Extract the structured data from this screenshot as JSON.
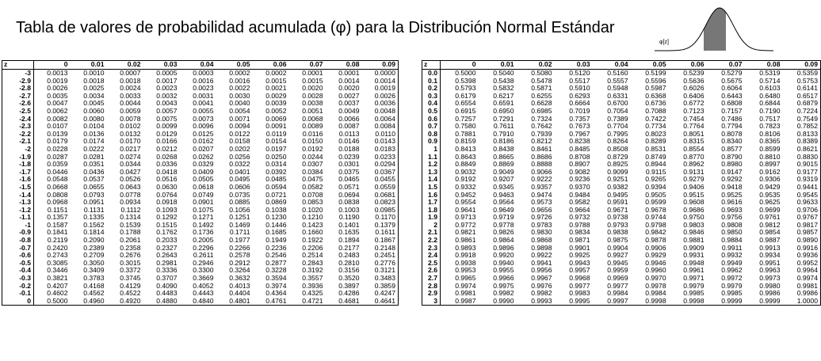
{
  "title": "Tabla de valores de probabilidad acumulada (φ) para la Distribución Normal Estándar",
  "curve_label": "φ[z]",
  "headers": [
    "z",
    "0",
    "0.01",
    "0.02",
    "0.03",
    "0.04",
    "0.05",
    "0.06",
    "0.07",
    "0.08",
    "0.09"
  ],
  "left_rows": [
    [
      "-3",
      "0.0013",
      "0.0010",
      "0.0007",
      "0.0005",
      "0.0003",
      "0.0002",
      "0.0002",
      "0.0001",
      "0.0001",
      "0.0000"
    ],
    [
      "-2.9",
      "0.0019",
      "0.0018",
      "0.0018",
      "0.0017",
      "0.0016",
      "0.0016",
      "0.0015",
      "0.0015",
      "0.0014",
      "0.0014"
    ],
    [
      "-2.8",
      "0.0026",
      "0.0025",
      "0.0024",
      "0.0023",
      "0.0023",
      "0.0022",
      "0.0021",
      "0.0020",
      "0.0020",
      "0.0019"
    ],
    [
      "-2.7",
      "0.0035",
      "0.0034",
      "0.0033",
      "0.0032",
      "0.0031",
      "0.0030",
      "0.0029",
      "0.0028",
      "0.0027",
      "0.0026"
    ],
    [
      "-2.6",
      "0.0047",
      "0.0045",
      "0.0044",
      "0.0043",
      "0.0041",
      "0.0040",
      "0.0039",
      "0.0038",
      "0.0037",
      "0.0036"
    ],
    [
      "-2.5",
      "0.0062",
      "0.0060",
      "0.0059",
      "0.0057",
      "0.0055",
      "0.0054",
      "0.0052",
      "0.0051",
      "0.0049",
      "0.0048"
    ],
    [
      "-2.4",
      "0.0082",
      "0.0080",
      "0.0078",
      "0.0075",
      "0.0073",
      "0.0071",
      "0.0069",
      "0.0068",
      "0.0066",
      "0.0064"
    ],
    [
      "-2.3",
      "0.0107",
      "0.0104",
      "0.0102",
      "0.0099",
      "0.0096",
      "0.0094",
      "0.0091",
      "0.0089",
      "0.0087",
      "0.0084"
    ],
    [
      "-2.2",
      "0.0139",
      "0.0136",
      "0.0132",
      "0.0129",
      "0.0125",
      "0.0122",
      "0.0119",
      "0.0116",
      "0.0113",
      "0.0110"
    ],
    [
      "-2.1",
      "0.0179",
      "0.0174",
      "0.0170",
      "0.0166",
      "0.0162",
      "0.0158",
      "0.0154",
      "0.0150",
      "0.0146",
      "0.0143"
    ],
    [
      "-2",
      "0.0228",
      "0.0222",
      "0.0217",
      "0.0212",
      "0.0207",
      "0.0202",
      "0.0197",
      "0.0192",
      "0.0188",
      "0.0183"
    ],
    [
      "-1.9",
      "0.0287",
      "0.0281",
      "0.0274",
      "0.0268",
      "0.0262",
      "0.0256",
      "0.0250",
      "0.0244",
      "0.0239",
      "0.0233"
    ],
    [
      "-1.8",
      "0.0359",
      "0.0351",
      "0.0344",
      "0.0336",
      "0.0329",
      "0.0322",
      "0.0314",
      "0.0307",
      "0.0301",
      "0.0294"
    ],
    [
      "-1.7",
      "0.0446",
      "0.0436",
      "0.0427",
      "0.0418",
      "0.0409",
      "0.0401",
      "0.0392",
      "0.0384",
      "0.0375",
      "0.0367"
    ],
    [
      "-1.6",
      "0.0548",
      "0.0537",
      "0.0526",
      "0.0516",
      "0.0505",
      "0.0495",
      "0.0485",
      "0.0475",
      "0.0465",
      "0.0455"
    ],
    [
      "-1.5",
      "0.0668",
      "0.0655",
      "0.0643",
      "0.0630",
      "0.0618",
      "0.0606",
      "0.0594",
      "0.0582",
      "0.0571",
      "0.0559"
    ],
    [
      "-1.4",
      "0.0808",
      "0.0793",
      "0.0778",
      "0.0764",
      "0.0749",
      "0.0735",
      "0.0721",
      "0.0708",
      "0.0694",
      "0.0681"
    ],
    [
      "-1.3",
      "0.0968",
      "0.0951",
      "0.0934",
      "0.0918",
      "0.0901",
      "0.0885",
      "0.0869",
      "0.0853",
      "0.0838",
      "0.0823"
    ],
    [
      "-1.2",
      "0.1151",
      "0.1131",
      "0.1112",
      "0.1093",
      "0.1075",
      "0.1056",
      "0.1038",
      "0.1020",
      "0.1003",
      "0.0985"
    ],
    [
      "-1.1",
      "0.1357",
      "0.1335",
      "0.1314",
      "0.1292",
      "0.1271",
      "0.1251",
      "0.1230",
      "0.1210",
      "0.1190",
      "0.1170"
    ],
    [
      "-1",
      "0.1587",
      "0.1562",
      "0.1539",
      "0.1515",
      "0.1492",
      "0.1469",
      "0.1446",
      "0.1423",
      "0.1401",
      "0.1379"
    ],
    [
      "-0.9",
      "0.1841",
      "0.1814",
      "0.1788",
      "0.1762",
      "0.1736",
      "0.1711",
      "0.1685",
      "0.1660",
      "0.1635",
      "0.1611"
    ],
    [
      "-0.8",
      "0.2119",
      "0.2090",
      "0.2061",
      "0.2033",
      "0.2005",
      "0.1977",
      "0.1949",
      "0.1922",
      "0.1894",
      "0.1867"
    ],
    [
      "-0.7",
      "0.2420",
      "0.2389",
      "0.2358",
      "0.2327",
      "0.2296",
      "0.2266",
      "0.2236",
      "0.2206",
      "0.2177",
      "0.2148"
    ],
    [
      "-0.6",
      "0.2743",
      "0.2709",
      "0.2676",
      "0.2643",
      "0.2611",
      "0.2578",
      "0.2546",
      "0.2514",
      "0.2483",
      "0.2451"
    ],
    [
      "-0.5",
      "0.3085",
      "0.3050",
      "0.3015",
      "0.2981",
      "0.2946",
      "0.2912",
      "0.2877",
      "0.2843",
      "0.2810",
      "0.2776"
    ],
    [
      "-0.4",
      "0.3446",
      "0.3409",
      "0.3372",
      "0.3336",
      "0.3300",
      "0.3264",
      "0.3228",
      "0.3192",
      "0.3156",
      "0.3121"
    ],
    [
      "-0.3",
      "0.3821",
      "0.3783",
      "0.3745",
      "0.3707",
      "0.3669",
      "0.3632",
      "0.3594",
      "0.3557",
      "0.3520",
      "0.3483"
    ],
    [
      "-0.2",
      "0.4207",
      "0.4168",
      "0.4129",
      "0.4090",
      "0.4052",
      "0.4013",
      "0.3974",
      "0.3936",
      "0.3897",
      "0.3859"
    ],
    [
      "-0.1",
      "0.4602",
      "0.4562",
      "0.4522",
      "0.4483",
      "0.4443",
      "0.4404",
      "0.4364",
      "0.4325",
      "0.4286",
      "0.4247"
    ],
    [
      "0",
      "0.5000",
      "0.4960",
      "0.4920",
      "0.4880",
      "0.4840",
      "0.4801",
      "0.4761",
      "0.4721",
      "0.4681",
      "0.4641"
    ]
  ],
  "right_rows": [
    [
      "0.0",
      "0.5000",
      "0.5040",
      "0.5080",
      "0.5120",
      "0.5160",
      "0.5199",
      "0.5239",
      "0.5279",
      "0.5319",
      "0.5359"
    ],
    [
      "0.1",
      "0.5398",
      "0.5438",
      "0.5478",
      "0.5517",
      "0.5557",
      "0.5596",
      "0.5636",
      "0.5675",
      "0.5714",
      "0.5753"
    ],
    [
      "0.2",
      "0.5793",
      "0.5832",
      "0.5871",
      "0.5910",
      "0.5948",
      "0.5987",
      "0.6026",
      "0.6064",
      "0.6103",
      "0.6141"
    ],
    [
      "0.3",
      "0.6179",
      "0.6217",
      "0.6255",
      "0.6293",
      "0.6331",
      "0.6368",
      "0.6406",
      "0.6443",
      "0.6480",
      "0.6517"
    ],
    [
      "0.4",
      "0.6554",
      "0.6591",
      "0.6628",
      "0.6664",
      "0.6700",
      "0.6736",
      "0.6772",
      "0.6808",
      "0.6844",
      "0.6879"
    ],
    [
      "0.5",
      "0.6915",
      "0.6950",
      "0.6985",
      "0.7019",
      "0.7054",
      "0.7088",
      "0.7123",
      "0.7157",
      "0.7190",
      "0.7224"
    ],
    [
      "0.6",
      "0.7257",
      "0.7291",
      "0.7324",
      "0.7357",
      "0.7389",
      "0.7422",
      "0.7454",
      "0.7486",
      "0.7517",
      "0.7549"
    ],
    [
      "0.7",
      "0.7580",
      "0.7611",
      "0.7642",
      "0.7673",
      "0.7704",
      "0.7734",
      "0.7764",
      "0.7794",
      "0.7823",
      "0.7852"
    ],
    [
      "0.8",
      "0.7881",
      "0.7910",
      "0.7939",
      "0.7967",
      "0.7995",
      "0.8023",
      "0.8051",
      "0.8078",
      "0.8106",
      "0.8133"
    ],
    [
      "0.9",
      "0.8159",
      "0.8186",
      "0.8212",
      "0.8238",
      "0.8264",
      "0.8289",
      "0.8315",
      "0.8340",
      "0.8365",
      "0.8389"
    ],
    [
      "1",
      "0.8413",
      "0.8438",
      "0.8461",
      "0.8485",
      "0.8508",
      "0.8531",
      "0.8554",
      "0.8577",
      "0.8599",
      "0.8621"
    ],
    [
      "1.1",
      "0.8643",
      "0.8665",
      "0.8686",
      "0.8708",
      "0.8729",
      "0.8749",
      "0.8770",
      "0.8790",
      "0.8810",
      "0.8830"
    ],
    [
      "1.2",
      "0.8849",
      "0.8869",
      "0.8888",
      "0.8907",
      "0.8925",
      "0.8944",
      "0.8962",
      "0.8980",
      "0.8997",
      "0.9015"
    ],
    [
      "1.3",
      "0.9032",
      "0.9049",
      "0.9066",
      "0.9082",
      "0.9099",
      "0.9115",
      "0.9131",
      "0.9147",
      "0.9162",
      "0.9177"
    ],
    [
      "1.4",
      "0.9192",
      "0.9207",
      "0.9222",
      "0.9236",
      "0.9251",
      "0.9265",
      "0.9279",
      "0.9292",
      "0.9306",
      "0.9319"
    ],
    [
      "1.5",
      "0.9332",
      "0.9345",
      "0.9357",
      "0.9370",
      "0.9382",
      "0.9394",
      "0.9406",
      "0.9418",
      "0.9429",
      "0.9441"
    ],
    [
      "1.6",
      "0.9452",
      "0.9463",
      "0.9474",
      "0.9484",
      "0.9495",
      "0.9505",
      "0.9515",
      "0.9525",
      "0.9535",
      "0.9545"
    ],
    [
      "1.7",
      "0.9554",
      "0.9564",
      "0.9573",
      "0.9582",
      "0.9591",
      "0.9599",
      "0.9608",
      "0.9616",
      "0.9625",
      "0.9633"
    ],
    [
      "1.8",
      "0.9641",
      "0.9649",
      "0.9656",
      "0.9664",
      "0.9671",
      "0.9678",
      "0.9686",
      "0.9693",
      "0.9699",
      "0.9706"
    ],
    [
      "1.9",
      "0.9713",
      "0.9719",
      "0.9726",
      "0.9732",
      "0.9738",
      "0.9744",
      "0.9750",
      "0.9756",
      "0.9761",
      "0.9767"
    ],
    [
      "2",
      "0.9772",
      "0.9778",
      "0.9783",
      "0.9788",
      "0.9793",
      "0.9798",
      "0.9803",
      "0.9808",
      "0.9812",
      "0.9817"
    ],
    [
      "2.1",
      "0.9821",
      "0.9826",
      "0.9830",
      "0.9834",
      "0.9838",
      "0.9842",
      "0.9846",
      "0.9850",
      "0.9854",
      "0.9857"
    ],
    [
      "2.2",
      "0.9861",
      "0.9864",
      "0.9868",
      "0.9871",
      "0.9875",
      "0.9878",
      "0.9881",
      "0.9884",
      "0.9887",
      "0.9890"
    ],
    [
      "2.3",
      "0.9893",
      "0.9896",
      "0.9898",
      "0.9901",
      "0.9904",
      "0.9906",
      "0.9909",
      "0.9911",
      "0.9913",
      "0.9916"
    ],
    [
      "2.4",
      "0.9918",
      "0.9920",
      "0.9922",
      "0.9925",
      "0.9927",
      "0.9929",
      "0.9931",
      "0.9932",
      "0.9934",
      "0.9936"
    ],
    [
      "2.5",
      "0.9938",
      "0.9940",
      "0.9941",
      "0.9943",
      "0.9945",
      "0.9946",
      "0.9948",
      "0.9949",
      "0.9951",
      "0.9952"
    ],
    [
      "2.6",
      "0.9953",
      "0.9955",
      "0.9956",
      "0.9957",
      "0.9959",
      "0.9960",
      "0.9961",
      "0.9962",
      "0.9963",
      "0.9964"
    ],
    [
      "2.7",
      "0.9965",
      "0.9966",
      "0.9967",
      "0.9968",
      "0.9969",
      "0.9970",
      "0.9971",
      "0.9972",
      "0.9973",
      "0.9974"
    ],
    [
      "2.8",
      "0.9974",
      "0.9975",
      "0.9976",
      "0.9977",
      "0.9977",
      "0.9978",
      "0.9979",
      "0.9979",
      "0.9980",
      "0.9981"
    ],
    [
      "2.9",
      "0.9981",
      "0.9982",
      "0.9982",
      "0.9983",
      "0.9984",
      "0.9984",
      "0.9985",
      "0.9985",
      "0.9986",
      "0.9986"
    ],
    [
      "3",
      "0.9987",
      "0.9990",
      "0.9993",
      "0.9995",
      "0.9997",
      "0.9998",
      "0.9998",
      "0.9999",
      "0.9999",
      "1.0000"
    ]
  ]
}
